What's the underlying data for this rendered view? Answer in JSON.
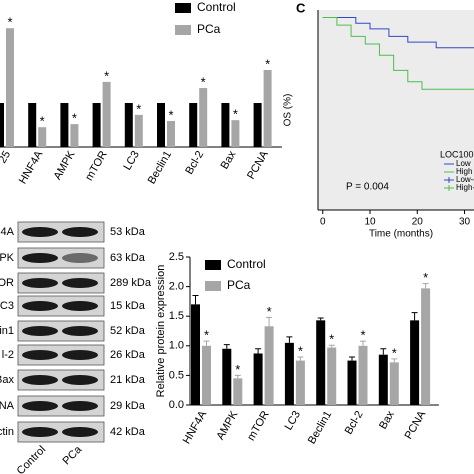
{
  "chart_data": [
    {
      "type": "bar",
      "categories": [
        "25",
        "HNF4A",
        "AMPK",
        "mTOR",
        "LC3",
        "Beclin1",
        "Bcl-2",
        "Bax",
        "PCNA"
      ],
      "series": [
        {
          "name": "Control",
          "color": "#000000",
          "values": [
            1,
            1,
            1,
            1,
            1,
            1,
            1,
            1,
            1
          ]
        },
        {
          "name": "PCa",
          "color": "#a6a6a6",
          "values": [
            2.7,
            0.45,
            0.52,
            1.48,
            0.73,
            0.59,
            1.34,
            0.61,
            1.75
          ],
          "annotations": [
            "*",
            "*",
            "*",
            "*",
            "*",
            "*",
            "*",
            "*",
            "*"
          ]
        }
      ],
      "ylim": [
        0,
        3.3
      ]
    },
    {
      "type": "line",
      "panel": "C",
      "ylabel": "OS (%)",
      "xlabel": "Time (months)",
      "annotation": "P = 0.004",
      "legend_title": "LOC100",
      "legend_extra": [
        "Low-c",
        "High-"
      ],
      "series": [
        {
          "name": "Low",
          "color": "#3347c4",
          "x": [
            0,
            7,
            7,
            10,
            10,
            14,
            14,
            18,
            18,
            24,
            24,
            32
          ],
          "values": [
            100,
            100,
            97,
            97,
            94,
            94,
            90,
            90,
            87,
            87,
            84,
            84
          ]
        },
        {
          "name": "High",
          "color": "#4cbf4c",
          "x": [
            0,
            3,
            3,
            6,
            6,
            9,
            9,
            12,
            12,
            15,
            15,
            18,
            18,
            21,
            21,
            32
          ],
          "values": [
            100,
            100,
            96,
            96,
            90,
            90,
            86,
            86,
            80,
            80,
            72,
            72,
            66,
            66,
            62,
            62
          ]
        }
      ],
      "xlim": [
        -1,
        32
      ],
      "xticks": [
        0,
        10,
        20,
        30
      ],
      "ylim": [
        -2,
        104
      ]
    },
    {
      "type": "bar",
      "ylabel": "Relative protein expression",
      "categories": [
        "HNF4A",
        "AMPK",
        "mTOR",
        "LC3",
        "Beclin1",
        "Bcl-2",
        "Bax",
        "PCNA"
      ],
      "series": [
        {
          "name": "Control",
          "color": "#000000",
          "values": [
            1.7,
            0.95,
            0.87,
            1.05,
            1.43,
            0.75,
            0.85,
            1.43
          ],
          "errors": [
            0.15,
            0.07,
            0.08,
            0.1,
            0.04,
            0.06,
            0.1,
            0.13
          ]
        },
        {
          "name": "PCa",
          "color": "#a6a6a6",
          "values": [
            1.0,
            0.45,
            1.33,
            0.75,
            0.97,
            1.0,
            0.72,
            1.97
          ],
          "errors": [
            0.08,
            0.05,
            0.15,
            0.06,
            0.04,
            0.08,
            0.06,
            0.08
          ],
          "annotations": [
            "*",
            "*",
            "*",
            "*",
            "*",
            "*",
            "*",
            "*"
          ]
        }
      ],
      "ylim": [
        0,
        2.5
      ],
      "yticks": [
        {
          "value": 0,
          "label": "0.0"
        },
        0.5,
        {
          "value": 1,
          "label": "1.0"
        },
        1.5,
        {
          "value": 2,
          "label": "2.0"
        },
        2.5
      ]
    }
  ],
  "blot": {
    "rows": [
      {
        "label": "4A",
        "size": "53 kDa"
      },
      {
        "label": "PK",
        "size": "63 kDa"
      },
      {
        "label": "OR",
        "size": "289 kDa"
      },
      {
        "label": "LC3",
        "size": "15 kDa"
      },
      {
        "label": "lin1",
        "size": "52 kDa"
      },
      {
        "label": "l-2",
        "size": "26 kDa"
      },
      {
        "label": "Bax",
        "size": "21 kDa"
      },
      {
        "label": "NA",
        "size": "29 kDa"
      },
      {
        "label": "ctin",
        "size": "42 kDa"
      }
    ],
    "lanes": [
      "Control",
      "PCa"
    ]
  }
}
